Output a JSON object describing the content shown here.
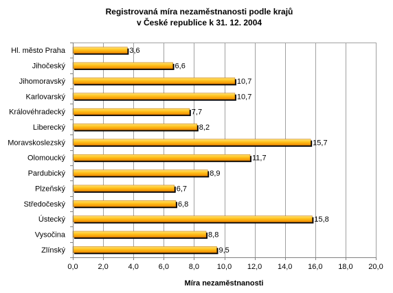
{
  "chart_data": {
    "type": "bar",
    "orientation": "horizontal",
    "title": [
      "Registrovaná míra nezaměstnanosti podle krajů",
      "v České republice k 31. 12. 2004"
    ],
    "xlabel": "Míra nezaměstnanosti",
    "ylabel": "",
    "categories": [
      "Hl. město Praha",
      "Jihočeský",
      "Jihomoravský",
      "Karlovarský",
      "Královéhradecký",
      "Liberecký",
      "Moravskoslezský",
      "Olomoucký",
      "Pardubický",
      "Plzeňský",
      "Středočeský",
      "Ústecký",
      "Vysočina",
      "Zlínský"
    ],
    "values": [
      3.6,
      6.6,
      10.7,
      10.7,
      7.7,
      8.2,
      15.7,
      11.7,
      8.9,
      6.7,
      6.8,
      15.8,
      8.8,
      9.5
    ],
    "value_labels": [
      "3,6",
      "6,6",
      "10,7",
      "10,7",
      "7,7",
      "8,2",
      "15,7",
      "11,7",
      "8,9",
      "6,7",
      "6,8",
      "15,8",
      "8,8",
      "9,5"
    ],
    "xlim": [
      0,
      20
    ],
    "ticks": [
      "0,0",
      "2,0",
      "4,0",
      "6,0",
      "8,0",
      "10,0",
      "12,0",
      "14,0",
      "16,0",
      "18,0",
      "20,0"
    ],
    "grid": true,
    "legend": false,
    "colors": {
      "bar_light": "#ffd84a",
      "bar_dark": "#f08a00",
      "shadow": "#000000",
      "grid": "#a0a0a0",
      "axis": "#808080"
    }
  }
}
